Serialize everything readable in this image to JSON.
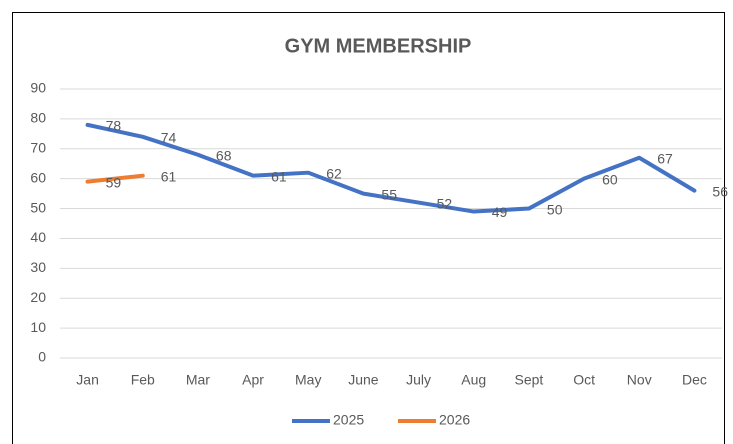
{
  "chart_data": {
    "type": "line",
    "title": "GYM MEMBERSHIP",
    "categories": [
      "Jan",
      "Feb",
      "Mar",
      "Apr",
      "May",
      "June",
      "July",
      "Aug",
      "Sept",
      "Oct",
      "Nov",
      "Dec"
    ],
    "series": [
      {
        "name": "2025",
        "color": "#4472c4",
        "values": [
          78,
          74,
          68,
          61,
          62,
          55,
          52,
          49,
          50,
          60,
          67,
          56
        ]
      },
      {
        "name": "2026",
        "color": "#ed7d31",
        "values": [
          59,
          61,
          null,
          null,
          null,
          null,
          null,
          null,
          null,
          null,
          null,
          null
        ]
      }
    ],
    "ylim": [
      0,
      90
    ],
    "yticks": [
      0,
      10,
      20,
      30,
      40,
      50,
      60,
      70,
      80,
      90
    ],
    "grid": true,
    "legend": "bottom"
  }
}
